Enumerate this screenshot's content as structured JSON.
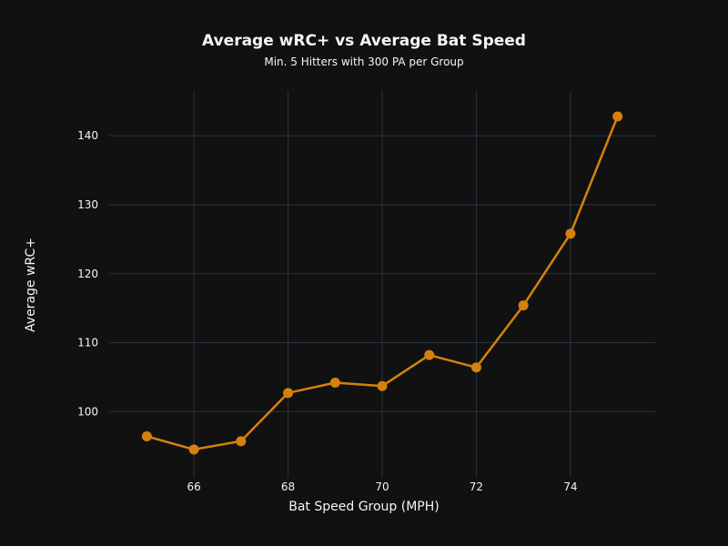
{
  "chart_data": {
    "type": "line",
    "title": "Average wRC+ vs Average Bat Speed",
    "subtitle": "Min. 5 Hitters with 300 PA per Group",
    "xlabel": "Bat Speed Group (MPH)",
    "ylabel": "Average wRC+",
    "x": [
      65,
      66,
      67,
      68,
      69,
      70,
      71,
      72,
      73,
      74,
      75
    ],
    "series": [
      {
        "values": [
          96.4,
          94.5,
          95.7,
          102.7,
          104.2,
          103.7,
          108.2,
          106.4,
          115.4,
          125.8,
          142.8
        ]
      }
    ],
    "xlim": [
      64.2,
      75.8
    ],
    "ylim": [
      90.4,
      146.5
    ],
    "x_ticks": [
      66,
      68,
      70,
      72,
      74
    ],
    "y_ticks": [
      100,
      110,
      120,
      130,
      140
    ],
    "line_color": "#d4820c",
    "grid": true,
    "background": "#111111",
    "grid_color": "#283442",
    "text_color": "#f2f5fa"
  }
}
